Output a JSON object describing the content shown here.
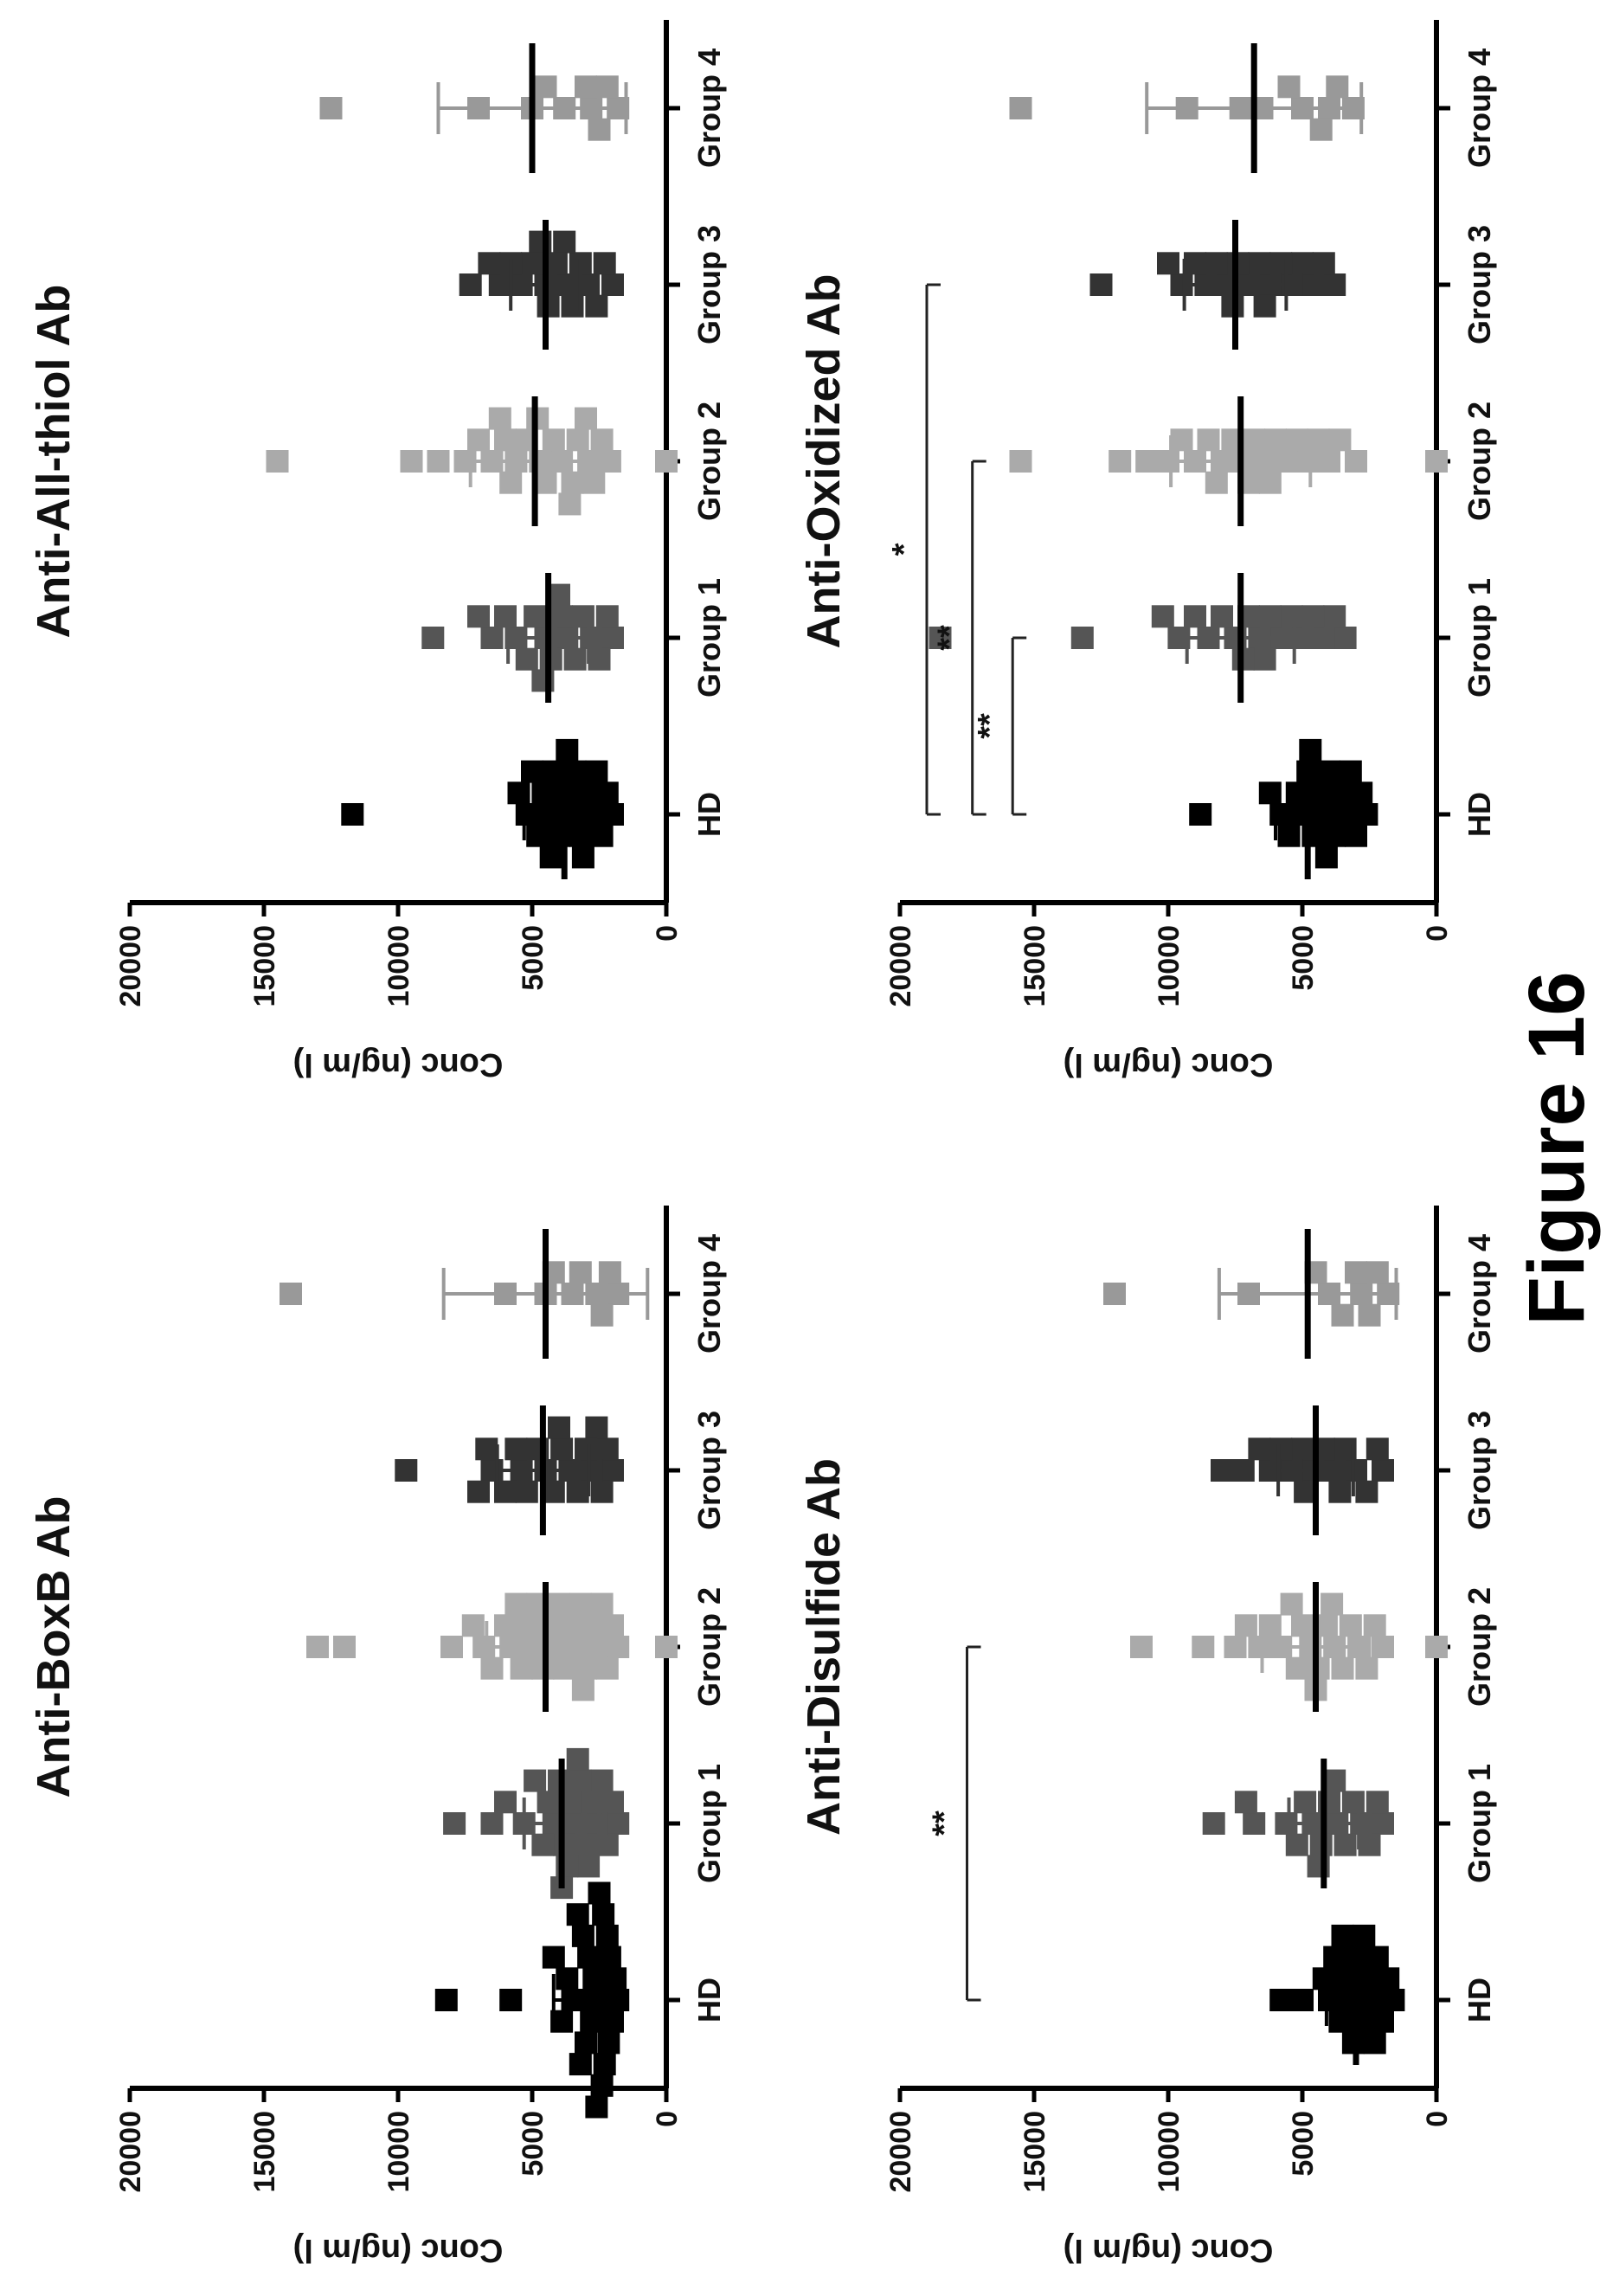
{
  "figure_caption": "Figure 16",
  "colors": {
    "HD": "#000000",
    "Group 1": "#555555",
    "Group 2": "#aaaaaa",
    "Group 3": "#333333",
    "Group 4": "#999999",
    "axis": "#000000",
    "bracket": "#222222"
  },
  "chart_data": [
    {
      "type": "scatter",
      "title": "Anti-BoxB Ab",
      "ylabel": "Conc (ng/m l)",
      "xlabel": "",
      "ylim": [
        0,
        20000
      ],
      "yticks": [
        "0",
        "5000",
        "10000",
        "15000",
        "20000"
      ],
      "categories": [
        "HD",
        "Group 1",
        "Group 2",
        "Group 3",
        "Group 4"
      ],
      "series": [
        {
          "category": "HD",
          "values": [
            8200,
            5800,
            4200,
            3700,
            3500,
            3300,
            3100,
            3000,
            2900,
            2800,
            2700,
            2600,
            2500,
            2400,
            2300,
            2200,
            2100,
            2000,
            1900,
            1800,
            3900,
            3200,
            2600,
            2350,
            2150
          ],
          "mean": 3000,
          "sd": 1200
        },
        {
          "category": "Group 1",
          "values": [
            7900,
            6000,
            6500,
            5300,
            4900,
            4600,
            4400,
            4200,
            4000,
            3800,
            3700,
            3600,
            3400,
            3200,
            3000,
            2900,
            2800,
            2600,
            2400,
            2200,
            2000,
            1800,
            3300,
            3900
          ],
          "mean": 3900,
          "sd": 1400
        },
        {
          "category": "Group 2",
          "values": [
            13000,
            12000,
            8000,
            6500,
            6000,
            5800,
            5600,
            5400,
            5000,
            4800,
            4600,
            4400,
            4200,
            4000,
            3800,
            3600,
            3400,
            3200,
            3000,
            2800,
            2600,
            2400,
            2200,
            2000,
            1800,
            0,
            7200,
            6800,
            5200,
            3100
          ],
          "mean": 4500,
          "sd": 2200
        },
        {
          "category": "Group 3",
          "values": [
            9700,
            7000,
            6700,
            6500,
            6000,
            5600,
            5200,
            4800,
            4500,
            4200,
            3900,
            3600,
            3300,
            3000,
            2800,
            2600,
            2400,
            2200,
            2000,
            5400,
            4000
          ],
          "mean": 4600,
          "sd": 1700
        },
        {
          "category": "Group 4",
          "values": [
            14000,
            6000,
            4500,
            4200,
            3500,
            3200,
            2600,
            2100,
            1800,
            2400
          ],
          "mean": 4500,
          "sd": 3800
        }
      ],
      "significance": []
    },
    {
      "type": "scatter",
      "title": "Anti-All-thiol Ab",
      "ylabel": "Conc (ng/m l)",
      "xlabel": "",
      "ylim": [
        0,
        20000
      ],
      "yticks": [
        "0",
        "5000",
        "10000",
        "15000",
        "20000"
      ],
      "categories": [
        "HD",
        "Group 1",
        "Group 2",
        "Group 3",
        "Group 4"
      ],
      "series": [
        {
          "category": "HD",
          "values": [
            11700,
            5500,
            5200,
            5000,
            4800,
            4600,
            4400,
            4200,
            4000,
            3800,
            3600,
            3400,
            3200,
            3000,
            2800,
            2600,
            2400,
            2200,
            2000,
            3700,
            4300,
            3100
          ],
          "mean": 3800,
          "sd": 1500
        },
        {
          "category": "Group 1",
          "values": [
            8700,
            7000,
            6500,
            6000,
            5600,
            5200,
            4900,
            4600,
            4300,
            4000,
            3700,
            3400,
            3100,
            2800,
            2500,
            2200,
            2000,
            4500,
            3900
          ],
          "mean": 4400,
          "sd": 1500
        },
        {
          "category": "Group 2",
          "values": [
            14500,
            9500,
            8500,
            7500,
            7000,
            6500,
            6000,
            5600,
            5200,
            4800,
            4500,
            4200,
            3900,
            3600,
            3300,
            3000,
            2700,
            2400,
            2100,
            0,
            5800,
            4700,
            3500,
            6200,
            2900
          ],
          "mean": 4900,
          "sd": 2400
        },
        {
          "category": "Group 3",
          "values": [
            7300,
            6600,
            6200,
            5800,
            5400,
            5000,
            4700,
            4400,
            4100,
            3800,
            3500,
            3200,
            2900,
            2600,
            2300,
            2000,
            4500,
            3700
          ],
          "mean": 4500,
          "sd": 1300
        },
        {
          "category": "Group 4",
          "values": [
            12500,
            7000,
            5000,
            4500,
            3800,
            3000,
            2800,
            2200,
            1800,
            2500
          ],
          "mean": 5000,
          "sd": 3500
        }
      ],
      "significance": []
    },
    {
      "type": "scatter",
      "title": "Anti-Disulfide Ab",
      "ylabel": "Conc (ng/m l)",
      "xlabel": "",
      "ylim": [
        0,
        20000
      ],
      "yticks": [
        "0",
        "5000",
        "10000",
        "15000",
        "20000"
      ],
      "categories": [
        "HD",
        "Group 1",
        "Group 2",
        "Group 3",
        "Group 4"
      ],
      "series": [
        {
          "category": "HD",
          "values": [
            5800,
            5000,
            4200,
            4000,
            3800,
            3600,
            3400,
            3200,
            3000,
            2800,
            2600,
            2400,
            2200,
            2000,
            1800,
            1600,
            3100,
            2700,
            3500,
            2300
          ],
          "mean": 3000,
          "sd": 1100
        },
        {
          "category": "Group 1",
          "values": [
            8300,
            7100,
            6800,
            5600,
            5200,
            4900,
            4600,
            4300,
            4000,
            3700,
            3400,
            3100,
            2800,
            2500,
            2200,
            2000,
            4400,
            3800
          ],
          "mean": 4200,
          "sd": 1300
        },
        {
          "category": "Group 2",
          "values": [
            11000,
            8700,
            7500,
            7100,
            6600,
            6200,
            5800,
            5400,
            5000,
            4700,
            4400,
            4100,
            3800,
            3500,
            3200,
            2900,
            2600,
            2300,
            2000,
            0,
            5200,
            4500,
            3900
          ],
          "mean": 4500,
          "sd": 2000
        },
        {
          "category": "Group 3",
          "values": [
            8000,
            7200,
            6600,
            6200,
            5800,
            5400,
            5000,
            4600,
            4200,
            3800,
            3400,
            3000,
            2600,
            2200,
            2000,
            4900,
            3600
          ],
          "mean": 4500,
          "sd": 1400
        },
        {
          "category": "Group 4",
          "values": [
            12000,
            7000,
            4500,
            4000,
            3500,
            3000,
            2800,
            2200,
            1800,
            2500
          ],
          "mean": 4800,
          "sd": 3300
        }
      ],
      "significance": [
        {
          "from": "HD",
          "to": "Group 2",
          "label": "**",
          "y": 17500
        }
      ]
    },
    {
      "type": "scatter",
      "title": "Anti-Oxidized Ab",
      "ylabel": "Conc (ng/m l)",
      "xlabel": "",
      "ylim": [
        0,
        20000
      ],
      "yticks": [
        "0",
        "5000",
        "10000",
        "15000",
        "20000"
      ],
      "categories": [
        "HD",
        "Group 1",
        "Group 2",
        "Group 3",
        "Group 4"
      ],
      "series": [
        {
          "category": "HD",
          "values": [
            8800,
            6200,
            5800,
            5500,
            5200,
            5000,
            4800,
            4600,
            4400,
            4200,
            4000,
            3800,
            3600,
            3400,
            3200,
            3000,
            2800,
            2600,
            4700,
            4100
          ],
          "mean": 4800,
          "sd": 1200
        },
        {
          "category": "Group 1",
          "values": [
            18500,
            13200,
            10200,
            9600,
            9000,
            8500,
            8000,
            7500,
            7000,
            6600,
            6200,
            5800,
            5400,
            5000,
            4600,
            4200,
            3800,
            3400,
            7200,
            6400
          ],
          "mean": 7300,
          "sd": 2000
        },
        {
          "category": "Group 2",
          "values": [
            15500,
            11800,
            10800,
            10000,
            9500,
            9000,
            8500,
            8000,
            7600,
            7200,
            6800,
            6400,
            6000,
            5600,
            5200,
            4800,
            4400,
            4000,
            3600,
            3000,
            0,
            7000,
            6200,
            8200
          ],
          "mean": 7300,
          "sd": 2600
        },
        {
          "category": "Group 3",
          "values": [
            12500,
            10000,
            9500,
            9000,
            8600,
            8200,
            7800,
            7400,
            7000,
            6600,
            6200,
            5800,
            5400,
            5000,
            4600,
            4200,
            3800,
            7600,
            6400
          ],
          "mean": 7500,
          "sd": 1900
        },
        {
          "category": "Group 4",
          "values": [
            15500,
            9300,
            7300,
            6500,
            5500,
            5000,
            4300,
            4000,
            3700,
            3100
          ],
          "mean": 6800,
          "sd": 4000
        }
      ],
      "significance": [
        {
          "from": "HD",
          "to": "Group 1",
          "label": "**",
          "y": 15800
        },
        {
          "from": "HD",
          "to": "Group 2",
          "label": "**",
          "y": 17300
        },
        {
          "from": "HD",
          "to": "Group 3",
          "label": "*",
          "y": 19000
        }
      ]
    }
  ]
}
